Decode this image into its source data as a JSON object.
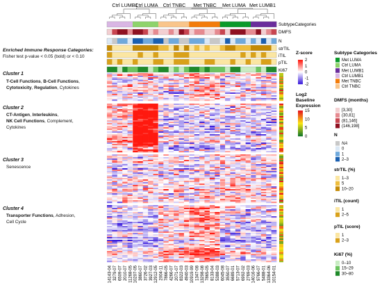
{
  "subtype_groups": [
    "Ctrl LUMB1",
    "Ctrl LUMA",
    "Ctrl TNBC",
    "Met TNBC",
    "Met LUMA",
    "Met LUMB1"
  ],
  "annotation_rows": [
    "SubtypeCategories",
    "DMFS",
    "N",
    "strTIL",
    "iTIL",
    "pTIL",
    "Ki67"
  ],
  "enriched_header": {
    "title": "Enriched Immune Response Categories:",
    "subtitle": "Fisher test p-value < 0.05 (bold) or < 0.10"
  },
  "clusters": [
    {
      "name": "Cluster 1",
      "line1_bold": "T-Cell Functions",
      "line1_sep": ", ",
      "line1_bold2": "B-Cell Functions",
      "line2_bold": "Cytotoxicity",
      "line2_sep": ", ",
      "line2_bold2": "Regulation",
      "line2_rest": ", Cytokines",
      "line3": ""
    },
    {
      "name": "Cluster 2",
      "line1_bold": "CT-Antigen",
      "line1_sep": ", ",
      "line1_bold2": "Interleukins",
      "line2_bold": "NK Cell Functions",
      "line2_sep": ", ",
      "line2_bold2": "",
      "line2_rest": "Complement,",
      "line3": "Cytokines"
    },
    {
      "name": "Cluster 3",
      "line1_bold": "",
      "line1_sep": "",
      "line1_bold2": "",
      "line1_rest": "Senescence",
      "line2_bold": "",
      "line2_sep": "",
      "line2_bold2": "",
      "line2_rest": "",
      "line3": ""
    },
    {
      "name": "Cluster 4",
      "line1_bold": "Transporter Functions",
      "line1_sep": "",
      "line1_bold2": "",
      "line1_rest": ", Adhesion,",
      "line2_bold": "",
      "line2_sep": "",
      "line2_bold2": "",
      "line2_rest": "Cell Cycle",
      "line3": ""
    }
  ],
  "legends": {
    "zscore": {
      "title": "Z-score",
      "ticks": [
        "2",
        "1",
        "0",
        "-1",
        "-2"
      ]
    },
    "log2": {
      "title_lines": [
        "Log2",
        "Baseline",
        "Expression"
      ],
      "ticks": [
        "15",
        "10",
        "5",
        "0"
      ]
    },
    "subtype": {
      "title": "Subtype Categories",
      "items": [
        {
          "label": "Met LUMA",
          "color": "#0a9a2a"
        },
        {
          "label": "Ctrl LUMA",
          "color": "#8ed36b"
        },
        {
          "label": "Met LUMB1",
          "color": "#6a2c9c"
        },
        {
          "label": "Ctrl LUMB1",
          "color": "#d9b6e4"
        },
        {
          "label": "Met TNBC",
          "color": "#f37c0a"
        },
        {
          "label": "Ctrl TNBC",
          "color": "#f9c58a"
        }
      ]
    },
    "dmfs": {
      "title": "DMFS (months)",
      "items": [
        {
          "label": "[3,30]",
          "color": "#f3cfd1"
        },
        {
          "label": "(30,81]",
          "color": "#e68a90"
        },
        {
          "label": "(81,146]",
          "color": "#c94550"
        },
        {
          "label": "(146,198]",
          "color": "#8f1020"
        }
      ]
    },
    "n": {
      "title": "N",
      "items": [
        {
          "label": "NA",
          "color": "#c8c8c8"
        },
        {
          "label": "0",
          "color": "#dbe8f5"
        },
        {
          "label": "1",
          "color": "#6fa9dc"
        },
        {
          "label": "2–3",
          "color": "#1a5fb0"
        }
      ]
    },
    "strtil": {
      "title": "strTIL (%)",
      "items": [
        {
          "label": "1–3",
          "color": "#fbe6a2"
        },
        {
          "label": "5",
          "color": "#eebd3d"
        },
        {
          "label": "10–20",
          "color": "#c48a05"
        }
      ]
    },
    "itil": {
      "title": "iTIL (count)",
      "items": [
        {
          "label": "1",
          "color": "#fbe6a2"
        },
        {
          "label": "2–5",
          "color": "#d9a11a"
        }
      ]
    },
    "ptil": {
      "title": "pTIL (score)",
      "items": [
        {
          "label": "1",
          "color": "#fbe6a2"
        },
        {
          "label": "2–3",
          "color": "#d9a11a"
        }
      ]
    },
    "ki67": {
      "title": "Ki67 (%)",
      "items": [
        {
          "label": "0–10",
          "color": "#c8ecc2"
        },
        {
          "label": "15–29",
          "color": "#6cc460"
        },
        {
          "label": "30–80",
          "color": "#1f8a2a"
        }
      ]
    }
  },
  "sample_ids": [
    "14143-04",
    "3279-07",
    "6509-07",
    "2010-07",
    "11268-05",
    "10207-05",
    "3860-07",
    "3726-02",
    "3927-03",
    "12912-05",
    "2004-11",
    "7866-05",
    "4266-07",
    "2071-07",
    "8322-03",
    "4940-03",
    "10919-99",
    "1347-08",
    "13298-08",
    "7865-05",
    "8133-04",
    "5388-03",
    "6045-08",
    "3550-07",
    "6689-01",
    "5713-07",
    "6992-02",
    "2769-03",
    "14016-06",
    "9766-07",
    "5488-01",
    "13364-06",
    "10154-01"
  ]
}
